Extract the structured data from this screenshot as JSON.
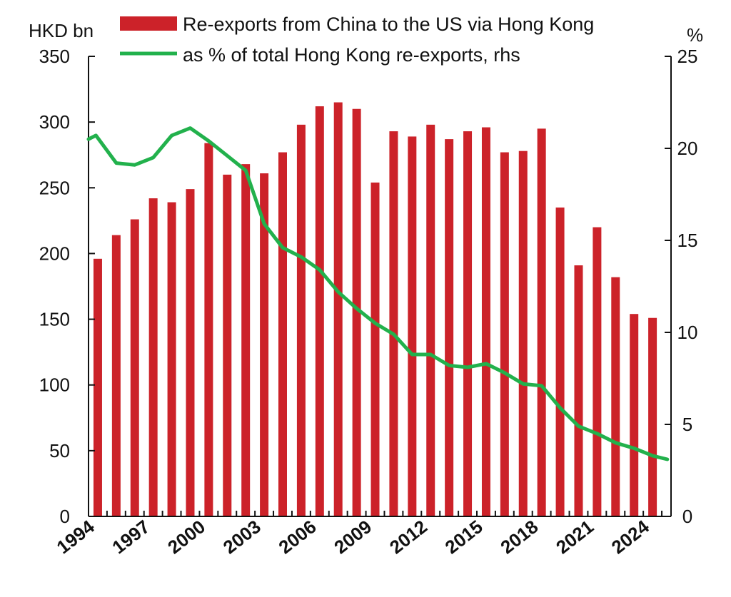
{
  "chart_data": {
    "type": "bar",
    "x": [
      1994,
      1995,
      1996,
      1997,
      1998,
      1999,
      2000,
      2001,
      2002,
      2003,
      2004,
      2005,
      2006,
      2007,
      2008,
      2009,
      2010,
      2011,
      2012,
      2013,
      2014,
      2015,
      2016,
      2017,
      2018,
      2019,
      2020,
      2021,
      2022,
      2023,
      2024,
      2025
    ],
    "x_tick_labels": [
      "1994",
      "1997",
      "2000",
      "2003",
      "2006",
      "2009",
      "2012",
      "2015",
      "2018",
      "2021",
      "2024"
    ],
    "series": [
      {
        "name": "Re-exports from China to the US via Hong Kong",
        "type": "bar",
        "axis": "left",
        "color": "#cc2229",
        "values": [
          196,
          214,
          226,
          242,
          239,
          249,
          284,
          260,
          268,
          261,
          277,
          298,
          312,
          315,
          310,
          254,
          293,
          289,
          298,
          287,
          293,
          296,
          277,
          278,
          295,
          235,
          191,
          220,
          182,
          154,
          151,
          null
        ]
      },
      {
        "name": "as % of total Hong Kong re-exports, rhs",
        "type": "line",
        "axis": "right",
        "color": "#22b14c",
        "points": [
          [
            1994.0,
            20.5
          ],
          [
            1994.4,
            20.7
          ],
          [
            1995.5,
            19.2
          ],
          [
            1996.5,
            19.1
          ],
          [
            1997.5,
            19.5
          ],
          [
            1998.5,
            20.7
          ],
          [
            1999.5,
            21.1
          ],
          [
            2000.5,
            20.4
          ],
          [
            2001.5,
            19.6
          ],
          [
            2002.5,
            18.8
          ],
          [
            2003.5,
            15.9
          ],
          [
            2004.5,
            14.6
          ],
          [
            2005.5,
            14.1
          ],
          [
            2006.5,
            13.4
          ],
          [
            2007.5,
            12.2
          ],
          [
            2008.5,
            11.3
          ],
          [
            2009.5,
            10.5
          ],
          [
            2010.5,
            9.9
          ],
          [
            2011.5,
            8.8
          ],
          [
            2012.5,
            8.8
          ],
          [
            2013.5,
            8.2
          ],
          [
            2014.5,
            8.1
          ],
          [
            2015.5,
            8.3
          ],
          [
            2016.5,
            7.8
          ],
          [
            2017.5,
            7.2
          ],
          [
            2018.5,
            7.1
          ],
          [
            2019.5,
            5.9
          ],
          [
            2020.5,
            4.9
          ],
          [
            2021.5,
            4.5
          ],
          [
            2022.5,
            4.0
          ],
          [
            2023.5,
            3.7
          ],
          [
            2024.5,
            3.3
          ],
          [
            2025.3,
            3.1
          ]
        ]
      }
    ],
    "left_axis": {
      "unit_label": "HKD bn",
      "ylim": [
        0,
        350
      ],
      "ticks": [
        "0",
        "50",
        "100",
        "150",
        "200",
        "250",
        "300",
        "350"
      ]
    },
    "right_axis": {
      "unit_label": "%",
      "ylim": [
        0,
        25
      ],
      "ticks": [
        "0",
        "5",
        "10",
        "15",
        "20",
        "25"
      ]
    },
    "xlim": [
      1994,
      2025.5
    ],
    "grid": false,
    "legend_position": "top"
  }
}
